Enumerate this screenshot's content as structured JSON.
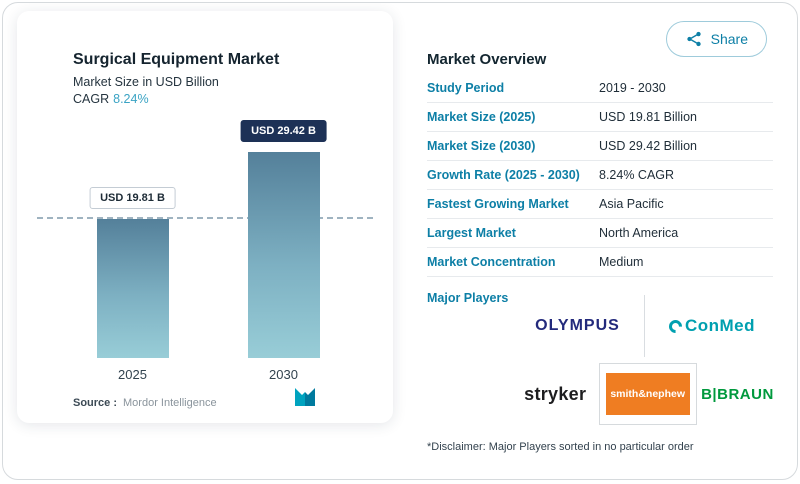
{
  "share": {
    "label": "Share"
  },
  "chart_card": {
    "title": "Surgical Equipment Market",
    "subtitle": "Market Size in USD Billion",
    "cagr_label": "CAGR",
    "cagr_value": "8.24%",
    "source_label": "Source :",
    "source_value": "Mordor Intelligence"
  },
  "chart_data": {
    "type": "bar",
    "title": "Surgical Equipment Market",
    "ylabel": "Market Size in USD Billion",
    "categories": [
      "2025",
      "2030"
    ],
    "values": [
      19.81,
      29.42
    ],
    "value_labels": [
      "USD 19.81 B",
      "USD 29.42 B"
    ],
    "ylim": [
      0,
      32
    ],
    "grid": false,
    "reference_line_at": 19.81,
    "cagr": "8.24%"
  },
  "overview": {
    "title": "Market Overview",
    "rows": [
      {
        "label": "Study Period",
        "value": "2019 - 2030"
      },
      {
        "label": "Market Size (2025)",
        "value": "USD 19.81 Billion"
      },
      {
        "label": "Market Size (2030)",
        "value": "USD 29.42 Billion"
      },
      {
        "label": "Growth Rate (2025 - 2030)",
        "value": "8.24% CAGR"
      },
      {
        "label": "Fastest Growing Market",
        "value": "Asia Pacific"
      },
      {
        "label": "Largest Market",
        "value": "North America"
      },
      {
        "label": "Market Concentration",
        "value": "Medium"
      }
    ],
    "major_players_label": "Major Players",
    "players": [
      "OLYMPUS",
      "ConMed",
      "stryker",
      "smith&nephew",
      "B|BRAUN"
    ],
    "disclaimer": "*Disclaimer: Major Players sorted in no particular order"
  },
  "colors": {
    "accent_teal": "#0d7fa6",
    "cagr_teal": "#3aa3c4",
    "bar_top": "#54809a",
    "bar_bottom": "#98cdd7",
    "label_box_navy": "#1d3156",
    "olympus_blue": "#232a7c",
    "conmed_teal": "#00a0b0",
    "stryker_black": "#1d1d1f",
    "smith_nephew_orange": "#ef7d22",
    "bbraun_green": "#00993d"
  }
}
